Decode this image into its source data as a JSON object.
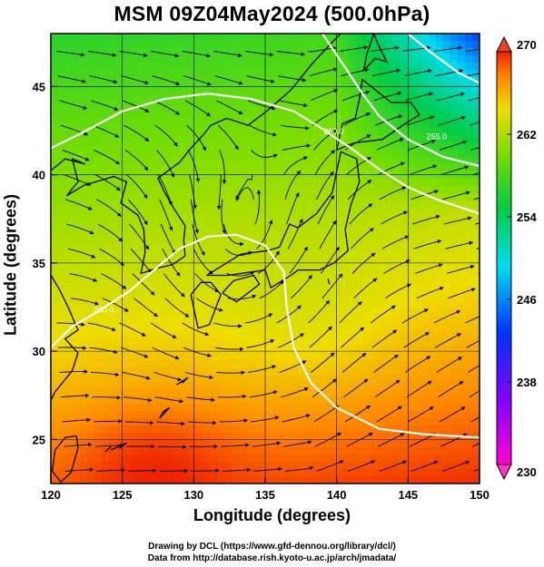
{
  "title": "MSM 09Z04May2024 (500.0hPa)",
  "xlabel": "Longitude (degrees)",
  "ylabel": "Latitude  (degrees)",
  "credits": {
    "drawing": "Drawing by DCL (https://www.gfd-dennou.org/library/dcl/)",
    "data": "Data from http://database.rish.kyoto-u.ac.jp/arch/jmadata/"
  },
  "chart_data": {
    "type": "heatmap",
    "variable": "temperature (K) with wind streamlines",
    "xlim": [
      120,
      150
    ],
    "ylim": [
      22.5,
      48
    ],
    "xticks": [
      120,
      125,
      130,
      135,
      140,
      145,
      150
    ],
    "yticks": [
      25,
      30,
      35,
      40,
      45
    ],
    "colorbar": {
      "min": 230,
      "max": 270,
      "ticks": [
        230,
        238,
        246,
        254,
        262,
        270
      ],
      "extend": "both"
    },
    "contour_labels": [
      {
        "text": "260.0",
        "lon": 139.8,
        "lat": 42.3
      },
      {
        "text": "260.0",
        "lon": 123.7,
        "lat": 32.2
      },
      {
        "text": "255.0",
        "lon": 147.0,
        "lat": 42.0
      }
    ],
    "grid": true,
    "coastlines": true
  }
}
